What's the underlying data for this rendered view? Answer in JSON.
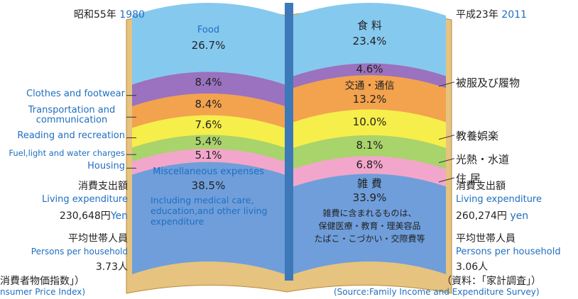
{
  "chart_data": {
    "type": "book",
    "categories": [
      "Food",
      "Clothes and footwear",
      "Transportation and communication",
      "Reading and recreation",
      "Fuel,light and water charges",
      "Housing",
      "Miscellaneous expenses"
    ],
    "categories_ja": [
      "食 料",
      "被服及び履物",
      "交通・通信",
      "教養娯楽",
      "光熱・水道",
      "住 居",
      "雑 費"
    ],
    "colors": [
      "#86c9ef",
      "#9a72bf",
      "#f3a24e",
      "#f6ee4a",
      "#a9d36b",
      "#f3a6cb",
      "#6f9edb"
    ],
    "series": [
      {
        "name": "1980",
        "era": "昭和55年",
        "values": [
          26.7,
          8.4,
          8.4,
          7.6,
          5.4,
          5.1,
          38.5
        ],
        "value_labels": [
          "26.7%",
          "8.4%",
          "8.4%",
          "7.6%",
          "5.4%",
          "5.1%",
          "38.5%"
        ]
      },
      {
        "name": "2011",
        "era": "平成23年",
        "values": [
          23.4,
          4.6,
          13.2,
          10.0,
          8.1,
          6.8,
          33.9
        ],
        "value_labels": [
          "23.4%",
          "4.6%",
          "13.2%",
          "10.0%",
          "8.1%",
          "6.8%",
          "33.9%"
        ]
      }
    ],
    "note": "Including medical care, education,and other living expenditure",
    "note_ja": [
      "雑費に含まれるものは、",
      "保健医療・教育・理美容品",
      "たばこ・こづかい・交際費等"
    ]
  },
  "left_info": {
    "spending_ja": "消費支出額",
    "spending_en": "Living expenditure",
    "amount": "230,648円",
    "unit": "Yen",
    "persons_ja": "平均世帯人員",
    "persons_en": "Persons per household",
    "persons": "3.73人",
    "index_ja": "消費者物価指数」）",
    "index_en": "nsumer Price Index)"
  },
  "right_info": {
    "spending_ja": "消費支出額",
    "spending_en": "Living expenditure",
    "amount": "260,274円",
    "unit": "yen",
    "persons_ja": "平均世帯人員",
    "persons_en": "Persons per household",
    "persons": "3.06人",
    "source_ja": "（資料：「家計調査」）",
    "source_en": "(Source:Family Income and Expenditure Survey)"
  }
}
